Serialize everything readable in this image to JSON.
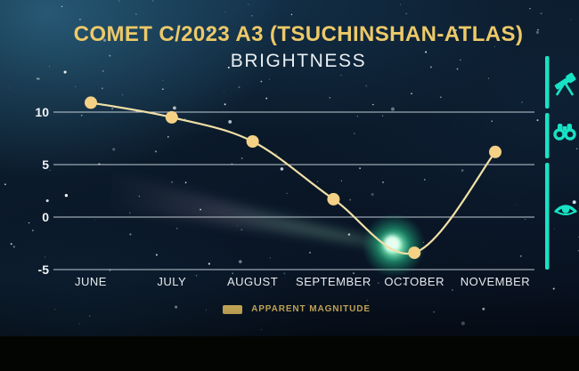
{
  "header": {
    "title": "COMET C/2023 A3 (TSUCHINSHAN-ATLAS)",
    "subtitle": "BRIGHTNESS"
  },
  "legend": {
    "label": "APPARENT MAGNITUDE",
    "swatch_color": "#edc968"
  },
  "visibility_scale": {
    "icons": [
      "telescope-icon",
      "binoculars-icon",
      "eye-icon"
    ],
    "color": "#17e3c4"
  },
  "colors": {
    "accent_gold": "#edc968",
    "line_gold": "#f0e0a6",
    "point_gold": "#f5d186",
    "teal": "#17e3c4",
    "grid_line": "#dfe9f0",
    "axis_text": "#f0f4f7",
    "comet_glow": "#3fe9a4"
  },
  "chart_data": {
    "type": "line",
    "title": "COMET C/2023 A3 (TSUCHINSHAN-ATLAS) — BRIGHTNESS",
    "categories": [
      "JUNE",
      "JULY",
      "AUGUST",
      "SEPTEMBER",
      "OCTOBER",
      "NOVEMBER"
    ],
    "series": [
      {
        "name": "APPARENT MAGNITUDE",
        "values": [
          10.9,
          9.5,
          7.2,
          1.7,
          -3.4,
          6.2
        ]
      }
    ],
    "xlabel": "",
    "ylabel": "",
    "yticks": [
      10,
      5,
      0,
      -5
    ],
    "ylim": [
      -5,
      10
    ],
    "grid": true,
    "legend_position": "bottom",
    "marker": "circle",
    "smooth": true
  }
}
